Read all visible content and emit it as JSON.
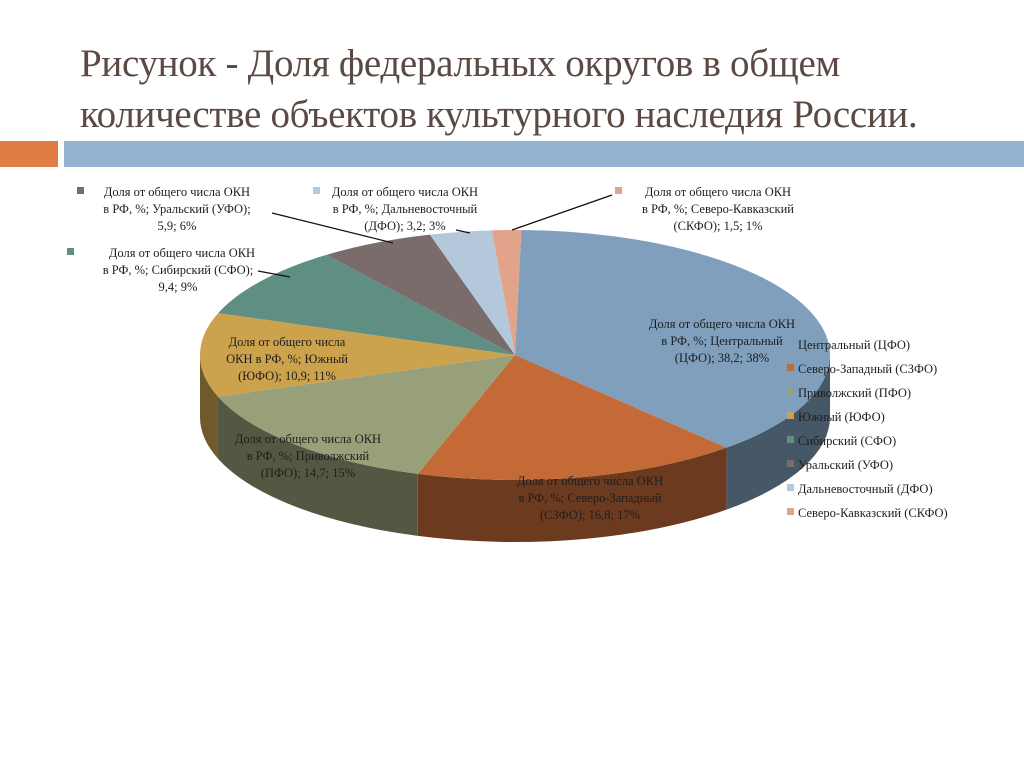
{
  "slide": {
    "title_line1": "Рисунок - Доля федеральных округов в общем",
    "title_line2": "количестве объектов культурного наследия России.",
    "accent_color": "#e07d45",
    "bar_color": "#93b3d0",
    "title_color": "#5b4a44"
  },
  "chart_data": {
    "type": "pie",
    "style": "3d",
    "title": "Доля федеральных округов в общем количестве объектов культурного наследия России",
    "series_name": "Доля от общего числа ОКН в РФ, %",
    "categories": [
      "Центральный (ЦФО)",
      "Северо-Западный (СЗФО)",
      "Приволжский (ПФО)",
      "Южный (ЮФО)",
      "Сибирский (СФО)",
      "Уральский (УФО)",
      "Дальневосточный (ДФО)",
      "Северо-Кавказский (СКФО)"
    ],
    "values": [
      38.2,
      16.8,
      14.7,
      10.9,
      9.4,
      5.9,
      3.2,
      1.5
    ],
    "percent_labels": [
      "38%",
      "17%",
      "15%",
      "11%",
      "9%",
      "6%",
      "3%",
      "1%"
    ],
    "colors": [
      "#7f9fbd",
      "#c46a37",
      "#98a07a",
      "#cca24d",
      "#5f8e83",
      "#7a6c6a",
      "#b4c8dc",
      "#e1a38a"
    ],
    "legend_position": "right",
    "data_labels": [
      {
        "line1": "Доля от общего числа ОКН",
        "line2": "в РФ, %; Центральный",
        "line3": "(ЦФО); 38,2; 38%"
      },
      {
        "line1": "Доля от общего числа ОКН",
        "line2": "в РФ, %; Северо-Западный",
        "line3": "(СЗФО); 16,8; 17%"
      },
      {
        "line1": "Доля от общего числа ОКН",
        "line2": "в РФ, %; Приволжский",
        "line3": "(ПФО); 14,7; 15%"
      },
      {
        "line1": "Доля от общего числа",
        "line2": "ОКН в РФ, %; Южный",
        "line3": "(ЮФО); 10,9; 11%"
      },
      {
        "line1": "Доля от общего числа ОКН",
        "line2": "в РФ, %; Сибирский (СФО);",
        "line3": "9,4; 9%"
      },
      {
        "line1": "Доля от общего числа ОКН",
        "line2": "в РФ, %; Уральский (УФО);",
        "line3": "5,9; 6%"
      },
      {
        "line1": "Доля от общего числа ОКН",
        "line2": "в РФ, %; Дальневосточный",
        "line3": "(ДФО); 3,2; 3%"
      },
      {
        "line1": "Доля от общего числа ОКН",
        "line2": "в РФ, %; Северо-Кавказский",
        "line3": "(СКФО); 1,5; 1%"
      }
    ]
  },
  "legend": {
    "items": [
      {
        "label": "Центральный (ЦФО)",
        "color": "#7f9fbd"
      },
      {
        "label": "Северо-Западный (СЗФО)",
        "color": "#c46a37"
      },
      {
        "label": "Приволжский (ПФО)",
        "color": "#98a07a"
      },
      {
        "label": "Южный (ЮФО)",
        "color": "#cca24d"
      },
      {
        "label": "Сибирский (СФО)",
        "color": "#5f8e83"
      },
      {
        "label": "Уральский (УФО)",
        "color": "#7a6c6a"
      },
      {
        "label": "Дальневосточный (ДФО)",
        "color": "#b4c8dc"
      },
      {
        "label": "Северо-Кавказский (СКФО)",
        "color": "#e1a38a"
      }
    ]
  }
}
